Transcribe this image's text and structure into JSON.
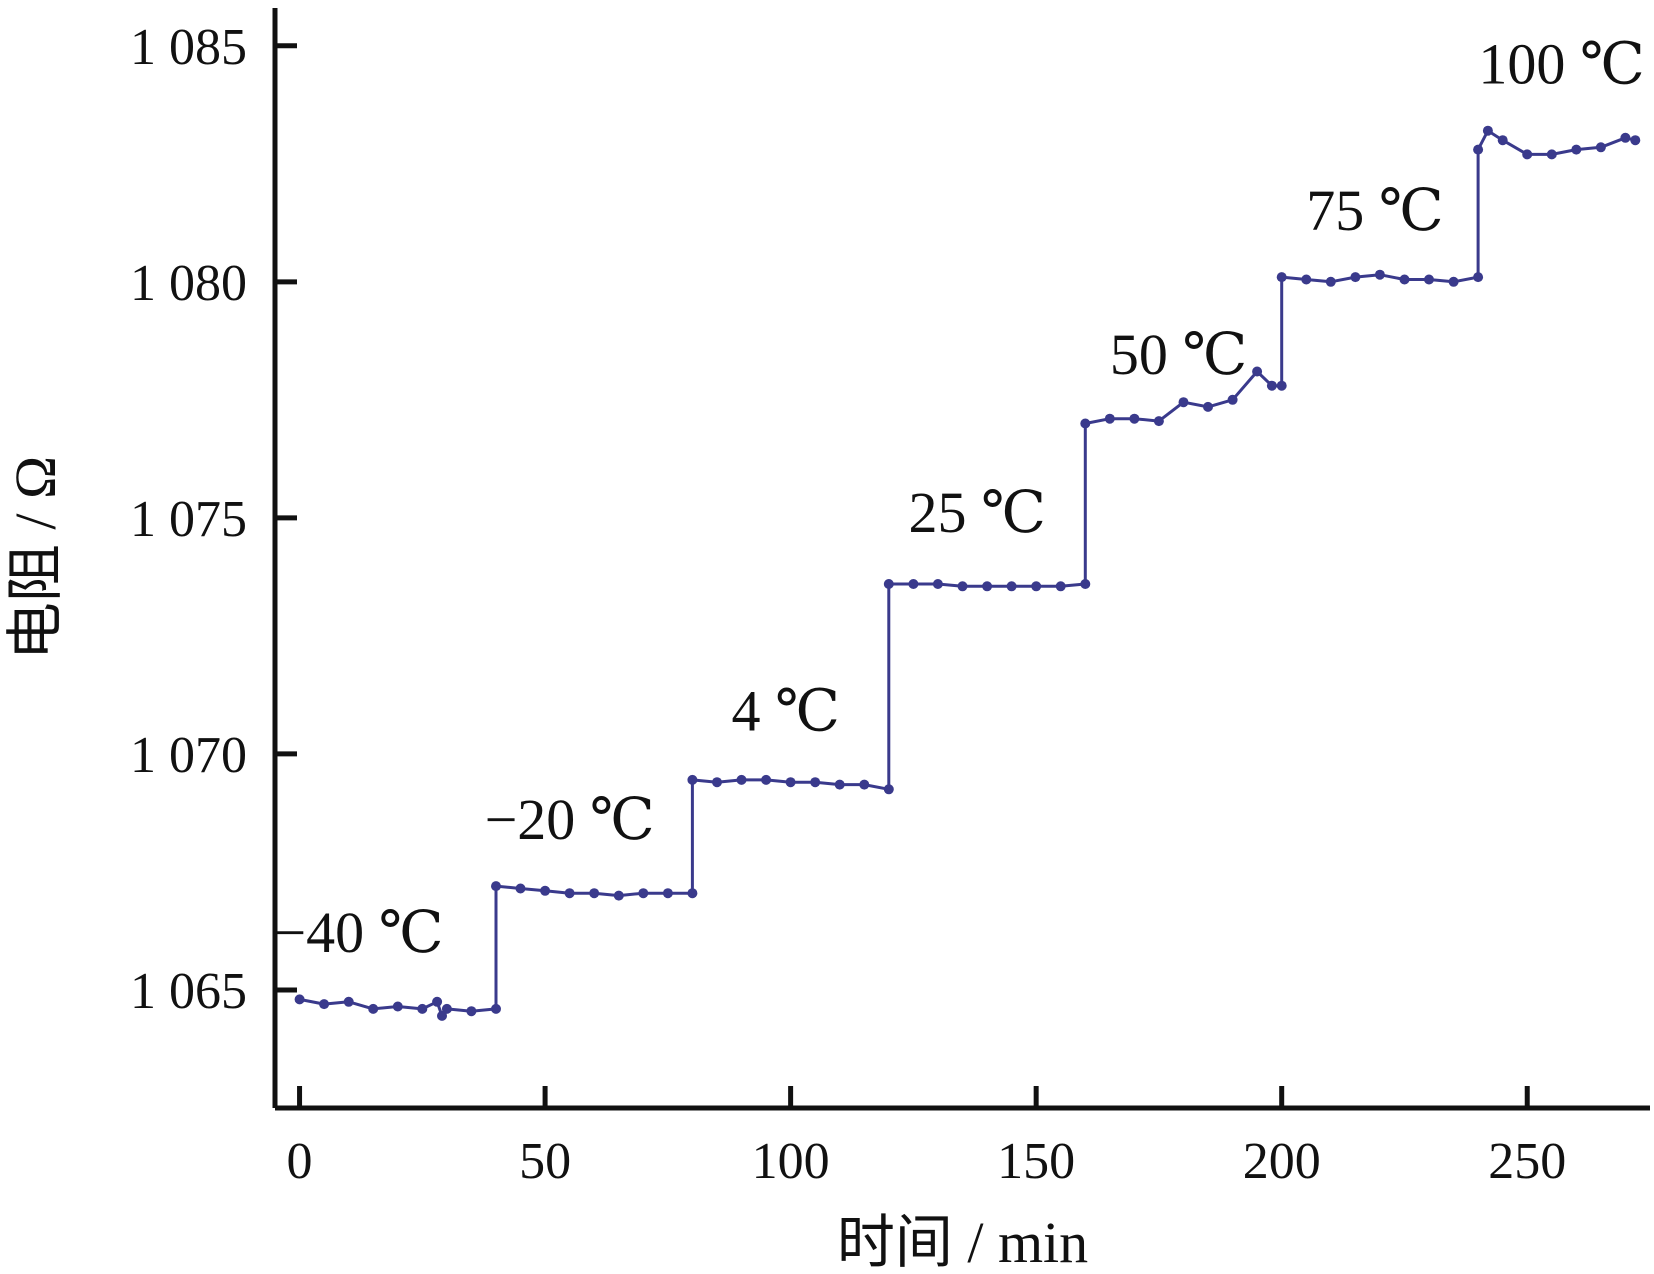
{
  "chart_data": {
    "type": "line",
    "xlabel": "时间 / min",
    "ylabel": "电阻 / Ω",
    "xlim": [
      -5,
      275
    ],
    "ylim": [
      1062.5,
      1085.8
    ],
    "x_ticks": [
      0,
      50,
      100,
      150,
      200,
      250
    ],
    "x_tick_labels": [
      "0",
      "50",
      "100",
      "150",
      "200",
      "250"
    ],
    "y_ticks": [
      1065,
      1070,
      1075,
      1080,
      1085
    ],
    "y_tick_labels": [
      "1 065",
      "1 070",
      "1 075",
      "1 080",
      "1 085"
    ],
    "grid": false,
    "series_color": "#3a3a8c",
    "series": [
      {
        "points": [
          [
            0,
            1064.8
          ],
          [
            5,
            1064.7
          ],
          [
            10,
            1064.75
          ],
          [
            15,
            1064.6
          ],
          [
            20,
            1064.65
          ],
          [
            25,
            1064.6
          ],
          [
            28,
            1064.75
          ],
          [
            29,
            1064.45
          ],
          [
            30,
            1064.6
          ],
          [
            35,
            1064.55
          ],
          [
            40,
            1064.6
          ],
          [
            40,
            1067.2
          ],
          [
            45,
            1067.15
          ],
          [
            50,
            1067.1
          ],
          [
            55,
            1067.05
          ],
          [
            60,
            1067.05
          ],
          [
            65,
            1067.0
          ],
          [
            70,
            1067.05
          ],
          [
            75,
            1067.05
          ],
          [
            80,
            1067.05
          ],
          [
            80,
            1069.45
          ],
          [
            85,
            1069.4
          ],
          [
            90,
            1069.45
          ],
          [
            95,
            1069.45
          ],
          [
            100,
            1069.4
          ],
          [
            105,
            1069.4
          ],
          [
            110,
            1069.35
          ],
          [
            115,
            1069.35
          ],
          [
            120,
            1069.25
          ],
          [
            120,
            1073.6
          ],
          [
            125,
            1073.6
          ],
          [
            130,
            1073.6
          ],
          [
            135,
            1073.55
          ],
          [
            140,
            1073.55
          ],
          [
            145,
            1073.55
          ],
          [
            150,
            1073.55
          ],
          [
            155,
            1073.55
          ],
          [
            160,
            1073.6
          ],
          [
            160,
            1077.0
          ],
          [
            165,
            1077.1
          ],
          [
            170,
            1077.1
          ],
          [
            175,
            1077.05
          ],
          [
            180,
            1077.45
          ],
          [
            185,
            1077.35
          ],
          [
            190,
            1077.5
          ],
          [
            195,
            1078.1
          ],
          [
            198,
            1077.8
          ],
          [
            200,
            1077.8
          ],
          [
            200,
            1080.1
          ],
          [
            205,
            1080.05
          ],
          [
            210,
            1080.0
          ],
          [
            215,
            1080.1
          ],
          [
            220,
            1080.15
          ],
          [
            225,
            1080.05
          ],
          [
            230,
            1080.05
          ],
          [
            235,
            1080.0
          ],
          [
            240,
            1080.1
          ],
          [
            240,
            1082.8
          ],
          [
            242,
            1083.2
          ],
          [
            245,
            1083.0
          ],
          [
            250,
            1082.7
          ],
          [
            255,
            1082.7
          ],
          [
            260,
            1082.8
          ],
          [
            265,
            1082.85
          ],
          [
            270,
            1083.05
          ],
          [
            272,
            1083.0
          ]
        ]
      }
    ],
    "annotations": [
      {
        "text": "−40 ℃",
        "x": 12,
        "y": 1065.8
      },
      {
        "text": "−20 ℃",
        "x": 55,
        "y": 1068.2
      },
      {
        "text": "4 ℃",
        "x": 99,
        "y": 1070.5
      },
      {
        "text": "25 ℃",
        "x": 138,
        "y": 1074.7
      },
      {
        "text": "50 ℃",
        "x": 179,
        "y": 1078.05
      },
      {
        "text": "75 ℃",
        "x": 219,
        "y": 1081.1
      },
      {
        "text": "100 ℃",
        "x": 257,
        "y": 1084.2
      }
    ]
  }
}
